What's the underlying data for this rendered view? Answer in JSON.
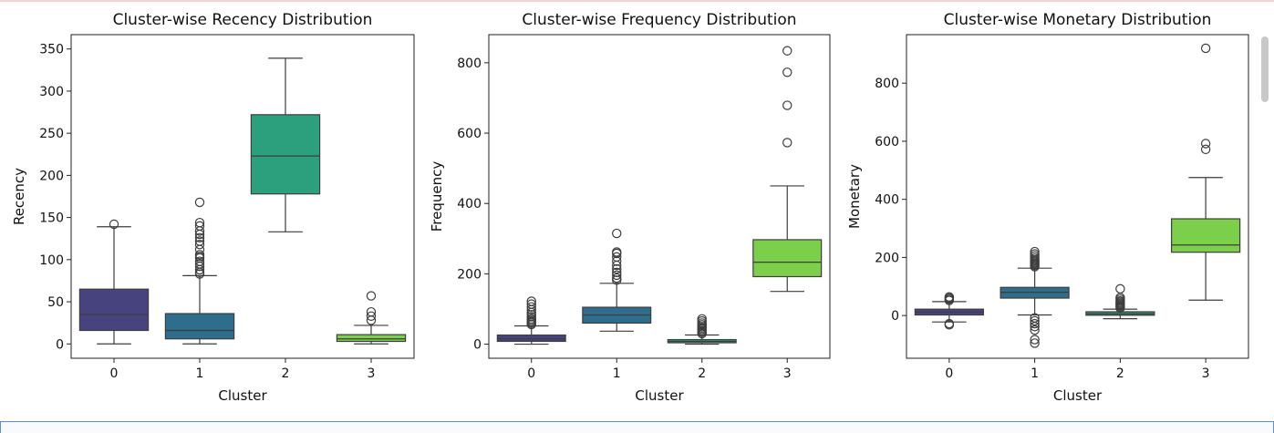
{
  "chart_data": [
    {
      "type": "box",
      "title": "Cluster-wise Recency Distribution",
      "xlabel": "Cluster",
      "ylabel": "Recency",
      "categories": [
        "0",
        "1",
        "2",
        "3"
      ],
      "ylim": [
        -17,
        367
      ],
      "yticks": [
        0,
        50,
        100,
        150,
        200,
        250,
        300,
        350
      ],
      "boxes": [
        {
          "whislo": 0,
          "q1": 16,
          "med": 35,
          "q3": 65,
          "whishi": 139,
          "fliers": [
            142
          ],
          "color": "#46437f"
        },
        {
          "whislo": 0,
          "q1": 6,
          "med": 16,
          "q3": 36,
          "whishi": 81,
          "fliers": [
            83,
            85,
            88,
            92,
            95,
            98,
            102,
            104,
            106,
            112,
            118,
            122,
            126,
            130,
            134,
            140,
            144,
            168
          ],
          "color": "#2e6d8c"
        },
        {
          "whislo": 133,
          "q1": 178,
          "med": 223,
          "q3": 272,
          "whishi": 339,
          "fliers": [],
          "color": "#2ca07c"
        },
        {
          "whislo": 0,
          "q1": 3,
          "med": 6,
          "q3": 11,
          "whishi": 22,
          "fliers": [
            28,
            33,
            38,
            57
          ],
          "color": "#7bcf4b"
        }
      ]
    },
    {
      "type": "box",
      "title": "Cluster-wise Frequency Distribution",
      "xlabel": "Cluster",
      "ylabel": "Frequency",
      "categories": [
        "0",
        "1",
        "2",
        "3"
      ],
      "ylim": [
        -40,
        880
      ],
      "yticks": [
        0,
        200,
        400,
        600,
        800
      ],
      "boxes": [
        {
          "whislo": 0,
          "q1": 8,
          "med": 15,
          "q3": 26,
          "whishi": 52,
          "fliers": [
            56,
            60,
            64,
            68,
            72,
            78,
            84,
            90,
            98,
            106,
            114,
            122
          ],
          "color": "#46437f"
        },
        {
          "whislo": 37,
          "q1": 60,
          "med": 83,
          "q3": 105,
          "whishi": 173,
          "fliers": [
            182,
            188,
            196,
            204,
            214,
            224,
            236,
            248,
            258,
            262,
            315
          ],
          "color": "#2e6d8c"
        },
        {
          "whislo": 0,
          "q1": 4,
          "med": 8,
          "q3": 13,
          "whishi": 26,
          "fliers": [
            30,
            34,
            38,
            42,
            46,
            50,
            55,
            60,
            66,
            72
          ],
          "color": "#2ca07c"
        },
        {
          "whislo": 150,
          "q1": 192,
          "med": 233,
          "q3": 297,
          "whishi": 450,
          "fliers": [
            573,
            679,
            773,
            834
          ],
          "color": "#7bcf4b"
        }
      ]
    },
    {
      "type": "box",
      "title": "Cluster-wise Monetary Distribution",
      "xlabel": "Cluster",
      "ylabel": "Monetary",
      "categories": [
        "0",
        "1",
        "2",
        "3"
      ],
      "ylim": [
        -147,
        967
      ],
      "yticks": [
        0,
        200,
        400,
        600,
        800
      ],
      "boxes": [
        {
          "whislo": -22,
          "q1": 2,
          "med": 12,
          "q3": 22,
          "whishi": 48,
          "fliers": [
            52,
            56,
            60,
            64,
            -28,
            -32
          ],
          "color": "#46437f"
        },
        {
          "whislo": 2,
          "q1": 60,
          "med": 80,
          "q3": 97,
          "whishi": 163,
          "fliers": [
            168,
            172,
            176,
            180,
            184,
            188,
            192,
            198,
            205,
            212,
            220,
            -8,
            -18,
            -28,
            -38,
            -50,
            -83,
            -95
          ],
          "color": "#2e6d8c"
        },
        {
          "whislo": -11,
          "q1": 1,
          "med": 6,
          "q3": 13,
          "whishi": 22,
          "fliers": [
            26,
            30,
            34,
            38,
            42,
            46,
            50,
            56,
            62,
            92
          ],
          "color": "#2ca07c"
        },
        {
          "whislo": 53,
          "q1": 218,
          "med": 243,
          "q3": 333,
          "whishi": 475,
          "fliers": [
            572,
            592,
            920
          ],
          "color": "#7bcf4b"
        }
      ]
    }
  ]
}
